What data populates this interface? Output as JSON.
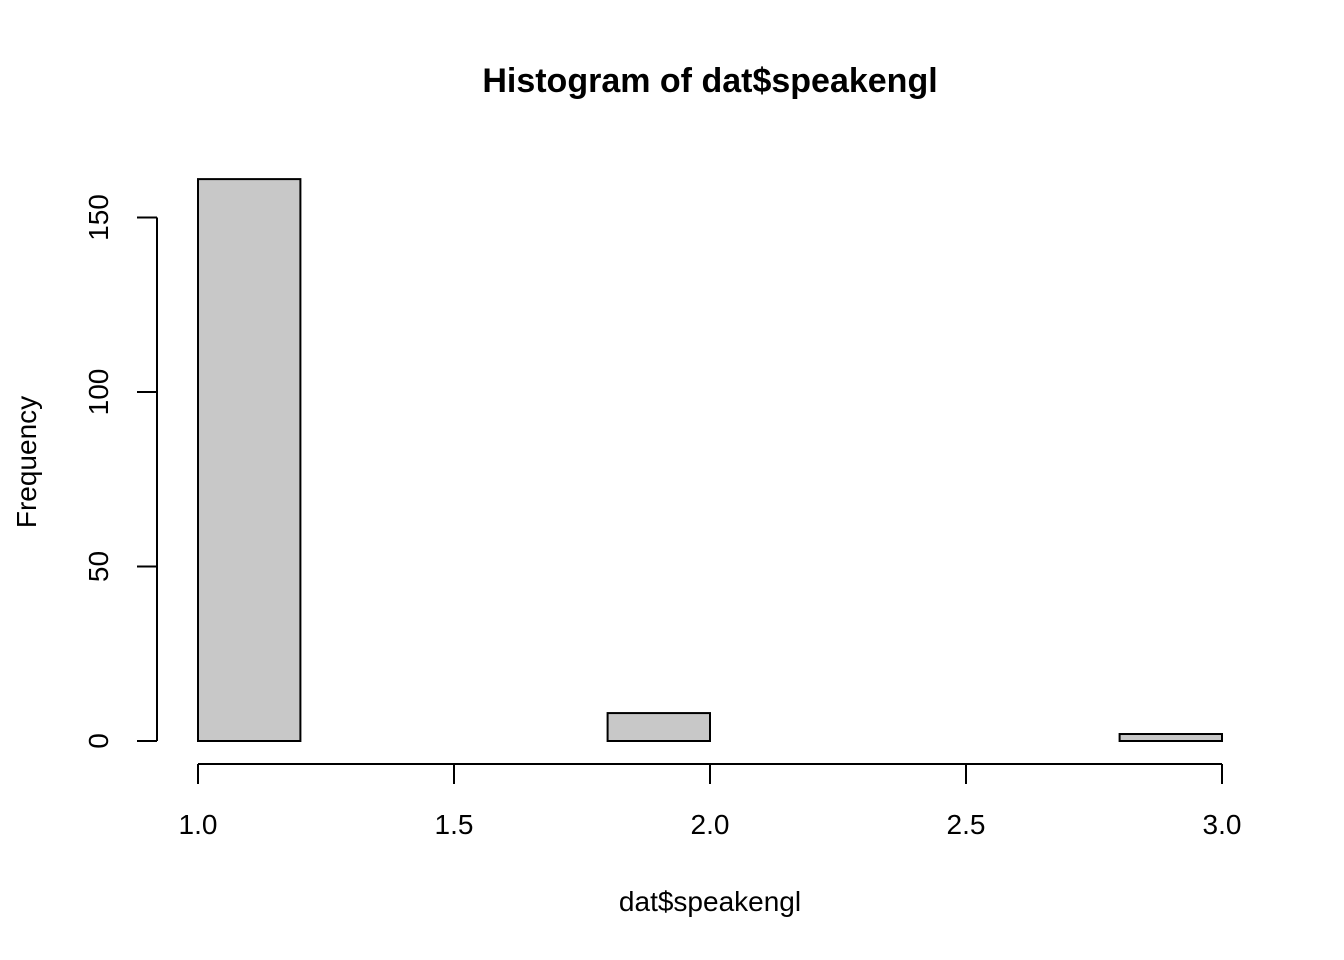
{
  "chart_data": {
    "type": "bar",
    "title": "Histogram of dat$speakengl",
    "xlabel": "dat$speakengl",
    "ylabel": "Frequency",
    "xlim": [
      1.0,
      3.0
    ],
    "ylim": [
      0,
      161
    ],
    "x_ticks": [
      "1.0",
      "1.5",
      "2.0",
      "2.5",
      "3.0"
    ],
    "y_ticks": [
      "0",
      "50",
      "100",
      "150"
    ],
    "bins": [
      {
        "start": 1.0,
        "end": 1.2,
        "count": 161
      },
      {
        "start": 1.2,
        "end": 1.4,
        "count": 0
      },
      {
        "start": 1.4,
        "end": 1.6,
        "count": 0
      },
      {
        "start": 1.6,
        "end": 1.8,
        "count": 0
      },
      {
        "start": 1.8,
        "end": 2.0,
        "count": 8
      },
      {
        "start": 2.0,
        "end": 2.2,
        "count": 0
      },
      {
        "start": 2.2,
        "end": 2.4,
        "count": 0
      },
      {
        "start": 2.4,
        "end": 2.6,
        "count": 0
      },
      {
        "start": 2.6,
        "end": 2.8,
        "count": 0
      },
      {
        "start": 2.8,
        "end": 3.0,
        "count": 2
      }
    ],
    "bar_color": "#c8c8c8",
    "grid": false
  }
}
